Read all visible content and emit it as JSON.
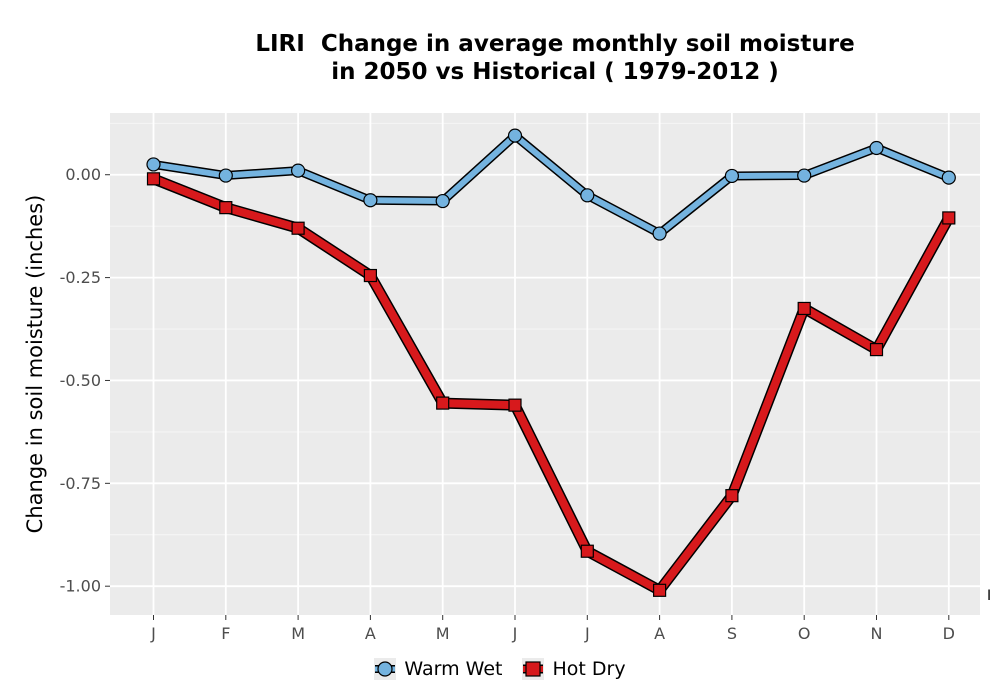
{
  "chart_data": {
    "type": "line",
    "title_lines": [
      "LIRI  Change in average monthly soil moisture",
      "in 2050 vs Historical ( 1979-2012 )"
    ],
    "xlabel": "",
    "ylabel": "Change in soil moisture (inches)",
    "categories": [
      "J",
      "F",
      "M",
      "A",
      "M",
      "J",
      "J",
      "A",
      "S",
      "O",
      "N",
      "D"
    ],
    "ylim": [
      -1.07,
      0.15
    ],
    "yticks": [
      0.0,
      -0.25,
      -0.5,
      -0.75,
      -1.0
    ],
    "ytick_labels": [
      "0.00",
      "-0.25",
      "-0.50",
      "-0.75",
      "-1.00"
    ],
    "grid": true,
    "legend_position": "bottom",
    "series": [
      {
        "name": "Warm Wet",
        "color": "#74b3df",
        "marker": "circle",
        "values": [
          0.025,
          -0.002,
          0.01,
          -0.062,
          -0.064,
          0.095,
          -0.05,
          -0.143,
          -0.003,
          -0.002,
          0.065,
          -0.007
        ]
      },
      {
        "name": "Hot Dry",
        "color": "#d7191c",
        "marker": "square",
        "values": [
          -0.01,
          -0.08,
          -0.13,
          -0.245,
          -0.555,
          -0.56,
          -0.915,
          -1.01,
          -0.78,
          -0.325,
          -0.425,
          -0.105
        ]
      }
    ]
  },
  "corner_mark": "I"
}
